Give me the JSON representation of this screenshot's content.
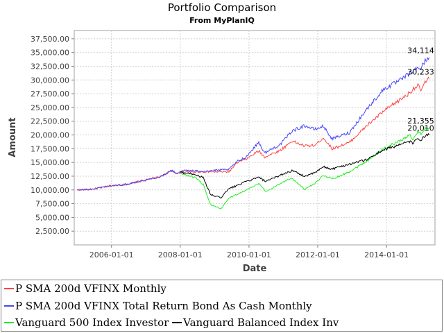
{
  "chart_data": {
    "type": "line",
    "title": "Portfolio Comparison",
    "subtitle": "From MyPlanIQ",
    "xlabel": "Date",
    "ylabel": "Amount",
    "xlim": [
      "2004-12-01",
      "2015-05-31"
    ],
    "ylim": [
      0,
      39000
    ],
    "x_ticks": [
      "2006-01-01",
      "2008-01-01",
      "2010-01-01",
      "2012-01-01",
      "2014-01-01"
    ],
    "y_ticks": [
      "2,500.00",
      "5,000.00",
      "7,500.00",
      "10,000.00",
      "12,500.00",
      "15,000.00",
      "17,500.00",
      "20,000.00",
      "22,500.00",
      "25,000.00",
      "27,500.00",
      "30,000.00",
      "32,500.00",
      "35,000.00",
      "37,500.00"
    ],
    "y_tick_values": [
      2500,
      5000,
      7500,
      10000,
      12500,
      15000,
      17500,
      20000,
      22500,
      25000,
      27500,
      30000,
      32500,
      35000,
      37500
    ],
    "grid": true,
    "legend_position": "bottom",
    "series": [
      {
        "name": "P SMA 200d VFINX Monthly",
        "color": "#ff4444",
        "points": [
          [
            "2005-01-01",
            10000
          ],
          [
            "2005-06-01",
            10100
          ],
          [
            "2005-12-01",
            10700
          ],
          [
            "2006-06-01",
            11000
          ],
          [
            "2006-12-01",
            11700
          ],
          [
            "2007-06-01",
            12400
          ],
          [
            "2007-10-01",
            13500
          ],
          [
            "2007-12-01",
            13000
          ],
          [
            "2008-01-15",
            13300
          ],
          [
            "2008-12-01",
            13300
          ],
          [
            "2009-06-01",
            13300
          ],
          [
            "2009-09-01",
            15000
          ],
          [
            "2009-12-01",
            15600
          ],
          [
            "2010-04-15",
            17100
          ],
          [
            "2010-06-15",
            16000
          ],
          [
            "2010-12-01",
            17200
          ],
          [
            "2011-04-01",
            18900
          ],
          [
            "2011-08-15",
            18000
          ],
          [
            "2011-12-01",
            18100
          ],
          [
            "2012-03-01",
            19500
          ],
          [
            "2012-06-01",
            17500
          ],
          [
            "2012-12-01",
            18600
          ],
          [
            "2013-06-01",
            21600
          ],
          [
            "2013-12-01",
            24300
          ],
          [
            "2014-06-01",
            26500
          ],
          [
            "2014-09-01",
            27600
          ],
          [
            "2014-10-15",
            28500
          ],
          [
            "2014-12-01",
            29000
          ],
          [
            "2015-01-01",
            28100
          ],
          [
            "2015-02-15",
            29500
          ],
          [
            "2015-03-31",
            30233
          ]
        ]
      },
      {
        "name": "P SMA 200d VFINX Total Return Bond As Cash Monthly",
        "color": "#4444ff",
        "points": [
          [
            "2005-01-01",
            10000
          ],
          [
            "2005-06-01",
            10100
          ],
          [
            "2005-12-01",
            10700
          ],
          [
            "2006-06-01",
            11000
          ],
          [
            "2006-12-01",
            11700
          ],
          [
            "2007-06-01",
            12400
          ],
          [
            "2007-10-01",
            13500
          ],
          [
            "2007-12-01",
            13000
          ],
          [
            "2008-03-01",
            13600
          ],
          [
            "2008-07-01",
            13400
          ],
          [
            "2008-12-01",
            13500
          ],
          [
            "2009-06-01",
            13700
          ],
          [
            "2009-09-01",
            15200
          ],
          [
            "2009-12-01",
            16000
          ],
          [
            "2010-04-15",
            18700
          ],
          [
            "2010-06-15",
            16700
          ],
          [
            "2010-12-01",
            18300
          ],
          [
            "2011-04-01",
            20700
          ],
          [
            "2011-08-15",
            21700
          ],
          [
            "2011-12-01",
            21000
          ],
          [
            "2012-03-01",
            21600
          ],
          [
            "2012-06-01",
            19300
          ],
          [
            "2012-12-01",
            20400
          ],
          [
            "2013-06-01",
            24600
          ],
          [
            "2013-12-01",
            28300
          ],
          [
            "2014-06-01",
            30000
          ],
          [
            "2014-09-01",
            31200
          ],
          [
            "2014-10-15",
            31600
          ],
          [
            "2014-12-01",
            32300
          ],
          [
            "2015-01-01",
            32100
          ],
          [
            "2015-02-15",
            33500
          ],
          [
            "2015-03-31",
            34114
          ]
        ]
      },
      {
        "name": "Vanguard 500 Index Investor",
        "color": "#22ee22",
        "points": [
          [
            "2008-01-01",
            13000
          ],
          [
            "2008-06-01",
            12300
          ],
          [
            "2008-09-01",
            11000
          ],
          [
            "2008-10-15",
            8800
          ],
          [
            "2008-11-20",
            7300
          ],
          [
            "2009-03-09",
            6600
          ],
          [
            "2009-06-01",
            8500
          ],
          [
            "2009-12-01",
            10000
          ],
          [
            "2010-04-15",
            11100
          ],
          [
            "2010-07-01",
            9700
          ],
          [
            "2010-12-01",
            11200
          ],
          [
            "2011-04-01",
            12200
          ],
          [
            "2011-08-15",
            10100
          ],
          [
            "2011-12-01",
            11100
          ],
          [
            "2012-03-01",
            12700
          ],
          [
            "2012-06-01",
            12000
          ],
          [
            "2012-12-01",
            13300
          ],
          [
            "2013-06-01",
            15200
          ],
          [
            "2013-12-01",
            17500
          ],
          [
            "2014-06-01",
            19000
          ],
          [
            "2014-09-01",
            20000
          ],
          [
            "2014-10-15",
            19200
          ],
          [
            "2014-12-01",
            20600
          ],
          [
            "2015-01-01",
            20200
          ],
          [
            "2015-02-15",
            21200
          ],
          [
            "2015-03-31",
            21355
          ]
        ]
      },
      {
        "name": "Vanguard Balanced Index Inv",
        "color": "#000000",
        "points": [
          [
            "2008-01-01",
            13200
          ],
          [
            "2008-06-01",
            12900
          ],
          [
            "2008-09-01",
            12200
          ],
          [
            "2008-10-15",
            10500
          ],
          [
            "2008-11-20",
            9100
          ],
          [
            "2009-03-09",
            8600
          ],
          [
            "2009-06-01",
            10200
          ],
          [
            "2009-12-01",
            11500
          ],
          [
            "2010-04-15",
            12300
          ],
          [
            "2010-07-01",
            11500
          ],
          [
            "2010-12-01",
            12700
          ],
          [
            "2011-04-01",
            13500
          ],
          [
            "2011-08-15",
            12500
          ],
          [
            "2011-12-01",
            13100
          ],
          [
            "2012-03-01",
            14200
          ],
          [
            "2012-06-01",
            13800
          ],
          [
            "2012-12-01",
            14700
          ],
          [
            "2013-06-01",
            15500
          ],
          [
            "2013-12-01",
            17300
          ],
          [
            "2014-06-01",
            18300
          ],
          [
            "2014-09-01",
            18800
          ],
          [
            "2014-10-15",
            18500
          ],
          [
            "2014-12-01",
            19400
          ],
          [
            "2015-01-01",
            19100
          ],
          [
            "2015-02-15",
            19800
          ],
          [
            "2015-03-31",
            20010
          ]
        ]
      }
    ],
    "end_labels": [
      {
        "text": "34,114",
        "color": "#000000",
        "series": 1
      },
      {
        "text": "30,233",
        "color": "#000000",
        "series": 0
      },
      {
        "text": "21,355",
        "color": "#000000",
        "series": 2
      },
      {
        "text": "20,010",
        "color": "#000000",
        "series": 3
      }
    ]
  },
  "legend": {
    "rows": [
      [
        {
          "label": "P SMA 200d VFINX Monthly",
          "color": "#ff4444"
        }
      ],
      [
        {
          "label": "P SMA 200d VFINX Total Return Bond As Cash Monthly",
          "color": "#4444ff"
        }
      ],
      [
        {
          "label": "Vanguard 500 Index Investor",
          "color": "#22ee22"
        },
        {
          "label": "Vanguard Balanced Index Inv",
          "color": "#000000"
        }
      ]
    ]
  }
}
